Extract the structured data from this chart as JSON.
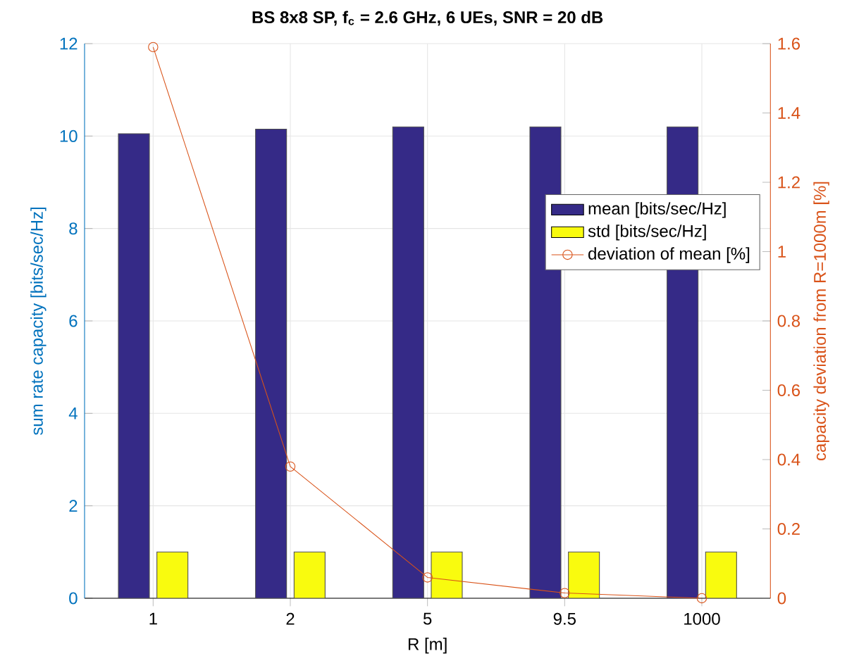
{
  "chart_data": {
    "type": "bar",
    "title": "**BS 8x8 SP, f$_{c}$ = 2.6 GHz, 6 UEs, SNR = 20 dB**",
    "xlabel": "R [m]",
    "ylabel": "sum rate capacity [bits/sec/Hz]",
    "y2label": "capacity deviation from R=1000m [%]",
    "categories": [
      "1",
      "2",
      "5",
      "9.5",
      "1000"
    ],
    "series": [
      {
        "name": "mean [bits/sec/Hz]",
        "color": "#352a87",
        "values": [
          10.05,
          10.15,
          10.2,
          10.2,
          10.2
        ]
      },
      {
        "name": "std [bits/sec/Hz]",
        "color": "#f9fb0e",
        "values": [
          1.0,
          1.0,
          1.0,
          1.0,
          1.0
        ]
      },
      {
        "name": "deviation of mean [%]",
        "type": "line",
        "axis": "y2",
        "color": "#d95319",
        "marker": "circle",
        "values": [
          1.59,
          0.38,
          0.06,
          0.015,
          0.0
        ]
      }
    ],
    "ylim": [
      0,
      12
    ],
    "yticks": [
      0,
      2,
      4,
      6,
      8,
      10,
      12
    ],
    "y2lim": [
      0,
      1.6
    ],
    "y2ticks": [
      0,
      0.2,
      0.4,
      0.6,
      0.8,
      1,
      1.2,
      1.4,
      1.6
    ],
    "grid": true,
    "legend": "right"
  }
}
